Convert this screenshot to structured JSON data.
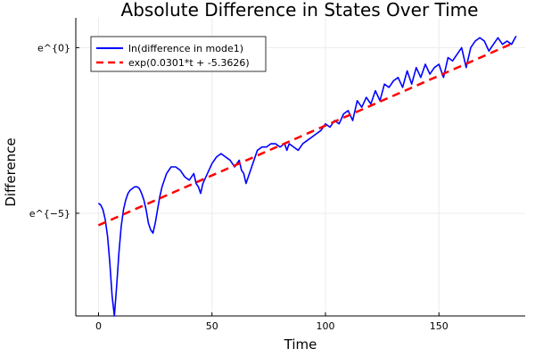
{
  "chart_data": {
    "type": "line",
    "title": "Absolute Difference in States Over Time",
    "xlabel": "Time",
    "ylabel": "Difference",
    "xlim": [
      -10,
      188
    ],
    "ylim": [
      -8.1,
      0.9
    ],
    "xticks": [
      0,
      50,
      100,
      150
    ],
    "xtick_labels": [
      "0",
      "50",
      "100",
      "150"
    ],
    "yticks": [
      -5,
      0
    ],
    "ytick_labels": [
      "e^{−5}",
      "e^{0}"
    ],
    "y_scale": "natural log",
    "grid": true,
    "legend_position": "top-left",
    "series": [
      {
        "name": "ln(difference in mode1)",
        "color": "#0000ff",
        "style": "solid",
        "x": [
          0,
          1,
          2,
          3,
          4,
          5,
          6,
          7,
          8,
          9,
          10,
          11,
          12,
          13,
          14,
          15,
          16,
          17,
          18,
          19,
          20,
          21,
          22,
          23,
          24,
          25,
          26,
          27,
          28,
          30,
          32,
          34,
          36,
          38,
          40,
          42,
          43,
          44,
          45,
          46,
          48,
          50,
          52,
          54,
          56,
          58,
          60,
          62,
          63,
          64,
          65,
          66,
          67,
          68,
          70,
          72,
          74,
          76,
          78,
          80,
          82,
          83,
          84,
          86,
          88,
          90,
          92,
          94,
          96,
          98,
          100,
          102,
          104,
          106,
          108,
          110,
          112,
          114,
          116,
          118,
          120,
          122,
          124,
          126,
          128,
          130,
          132,
          134,
          136,
          138,
          140,
          142,
          144,
          146,
          148,
          150,
          152,
          154,
          156,
          158,
          160,
          162,
          164,
          166,
          168,
          170,
          172,
          174,
          176,
          178,
          180,
          182,
          184
        ],
        "y": [
          -4.7,
          -4.75,
          -4.9,
          -5.2,
          -5.7,
          -6.5,
          -7.5,
          -8.1,
          -7.2,
          -6.2,
          -5.4,
          -4.9,
          -4.6,
          -4.4,
          -4.3,
          -4.25,
          -4.2,
          -4.2,
          -4.25,
          -4.4,
          -4.6,
          -4.9,
          -5.3,
          -5.5,
          -5.6,
          -5.3,
          -4.9,
          -4.5,
          -4.2,
          -3.8,
          -3.6,
          -3.6,
          -3.7,
          -3.9,
          -4.0,
          -3.8,
          -4.1,
          -4.2,
          -4.4,
          -4.1,
          -3.8,
          -3.5,
          -3.3,
          -3.2,
          -3.3,
          -3.4,
          -3.6,
          -3.4,
          -3.7,
          -3.8,
          -4.1,
          -3.9,
          -3.7,
          -3.5,
          -3.1,
          -3.0,
          -3.0,
          -2.9,
          -2.9,
          -3.0,
          -2.9,
          -3.1,
          -2.9,
          -3.0,
          -3.1,
          -2.9,
          -2.8,
          -2.7,
          -2.6,
          -2.5,
          -2.3,
          -2.4,
          -2.2,
          -2.3,
          -2.0,
          -1.9,
          -2.2,
          -1.6,
          -1.8,
          -1.5,
          -1.7,
          -1.3,
          -1.6,
          -1.1,
          -1.2,
          -1.0,
          -0.9,
          -1.2,
          -0.7,
          -1.1,
          -0.6,
          -0.9,
          -0.5,
          -0.8,
          -0.6,
          -0.5,
          -0.9,
          -0.3,
          -0.4,
          -0.2,
          0.0,
          -0.6,
          0.0,
          0.2,
          0.3,
          0.2,
          -0.1,
          0.1,
          0.3,
          0.1,
          0.2,
          0.1,
          0.35
        ]
      },
      {
        "name": "exp(0.0301*t + -5.3626)",
        "color": "#ff0000",
        "style": "dashed",
        "x": [
          0,
          183
        ],
        "y": [
          -5.3626,
          0.1457
        ]
      }
    ]
  }
}
